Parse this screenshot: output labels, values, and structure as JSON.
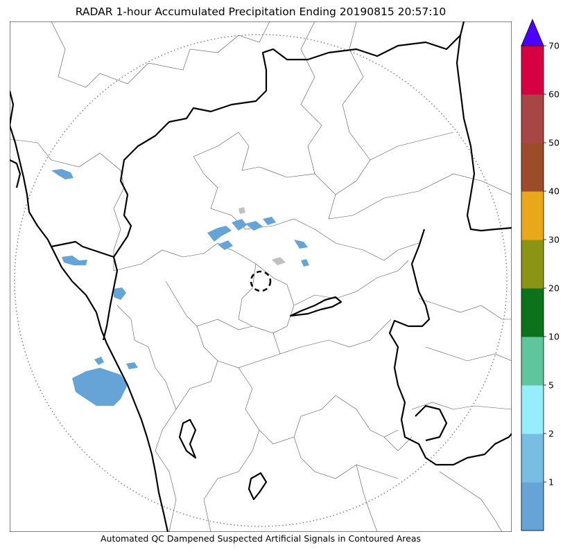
{
  "title": "RADAR 1-hour Accumulated Precipitation Ending 20190815 20:57:10",
  "caption": "Automated QC Dampened Suspected Artificial Signals in Contoured Areas",
  "colorbar": {
    "extend": "max",
    "extend_color": "#4b00ff",
    "bins": [
      {
        "color": "#66a3d6",
        "label": ""
      },
      {
        "color": "#78bee2",
        "label": "1"
      },
      {
        "color": "#96eefc",
        "label": "2"
      },
      {
        "color": "#5ec59c",
        "label": "5"
      },
      {
        "color": "#0c721c",
        "label": "10"
      },
      {
        "color": "#8c9414",
        "label": "20"
      },
      {
        "color": "#e8a81a",
        "label": "30"
      },
      {
        "color": "#9c4c28",
        "label": "40"
      },
      {
        "color": "#a84646",
        "label": "50"
      },
      {
        "color": "#d60042",
        "label": "60"
      }
    ],
    "top_label": "70"
  },
  "map": {
    "precip_color": "#66a3d6",
    "range_ring": "dotted",
    "center_marker": "dashed-circle"
  }
}
